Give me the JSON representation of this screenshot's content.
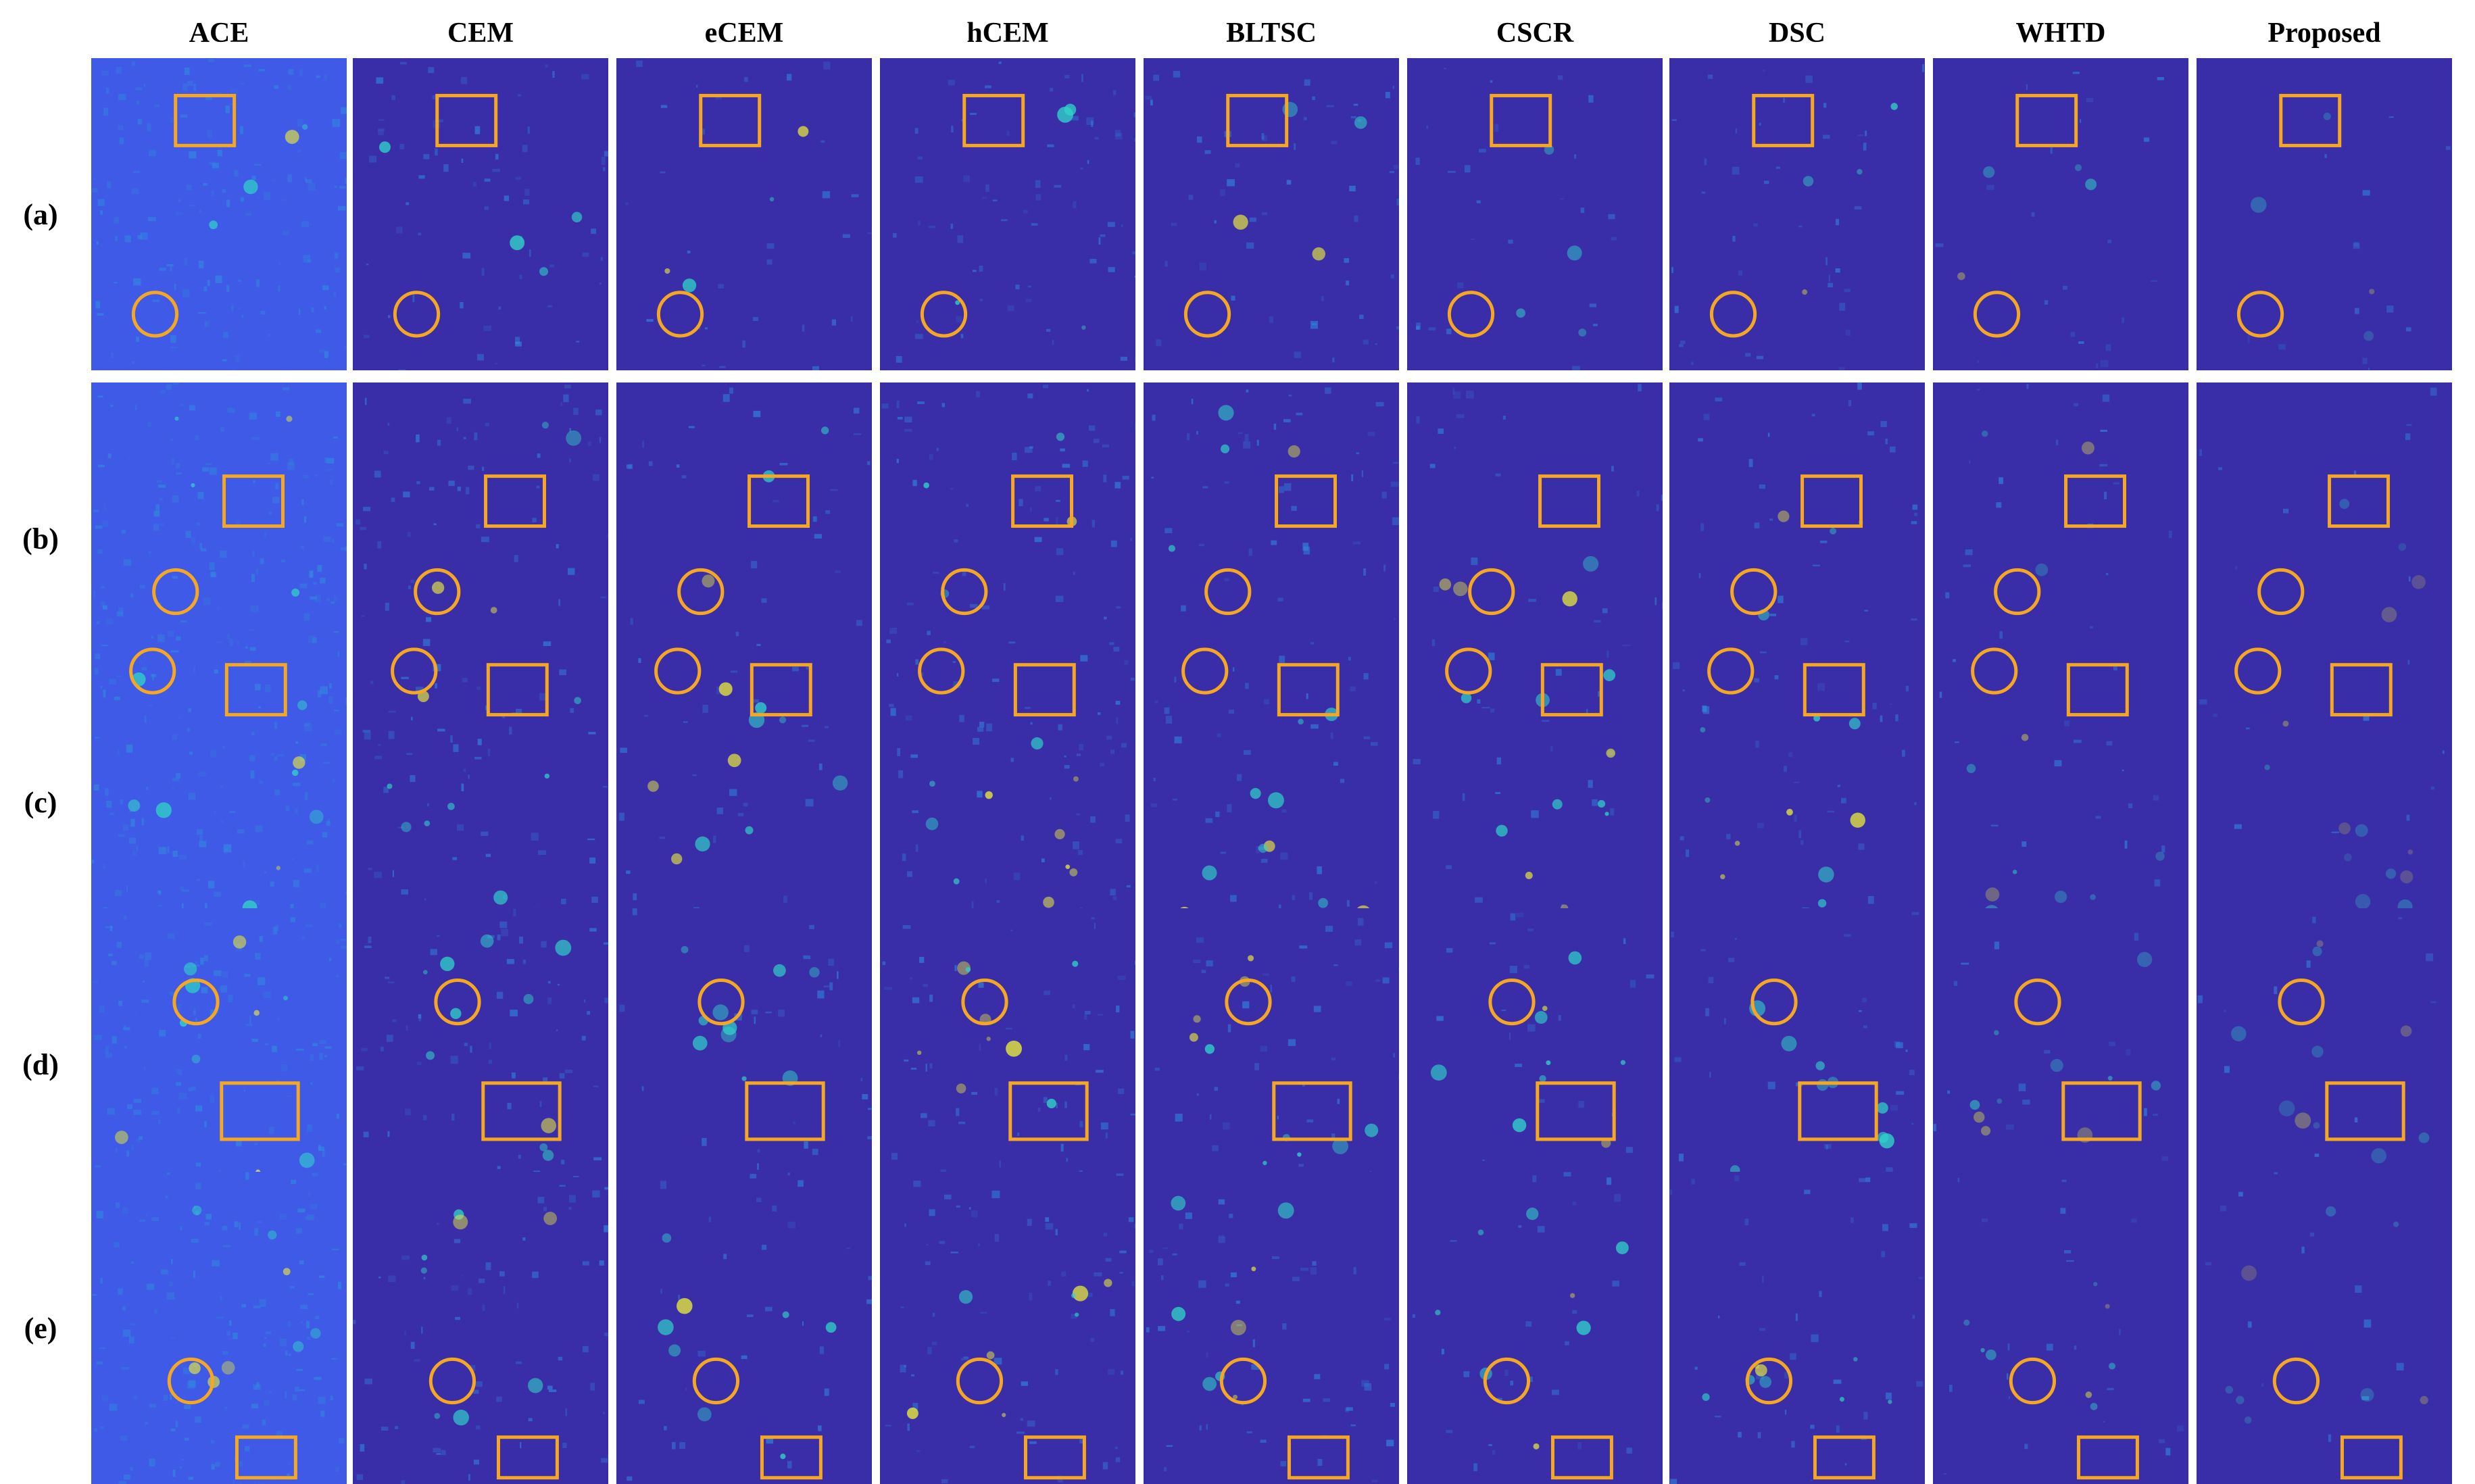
{
  "figure": {
    "columns": [
      "ACE",
      "CEM",
      "eCEM",
      "hCEM",
      "BLTSC",
      "CSCR",
      "DSC",
      "WHTD",
      "Proposed"
    ],
    "rows": [
      "(a)",
      "(b)",
      "(c)",
      "(d)",
      "(e)"
    ]
  },
  "colors": {
    "background_low": "#3a2ea8",
    "background_mid": "#3f5ae6",
    "texture_high": "#2f8fe0",
    "target_cyan": "#2fd5c8",
    "target_yellow": "#e8e83a",
    "marker": "#f5a623"
  },
  "icons": {
    "circle_marker": "circle-marker",
    "box_marker": "rectangle-marker"
  }
}
